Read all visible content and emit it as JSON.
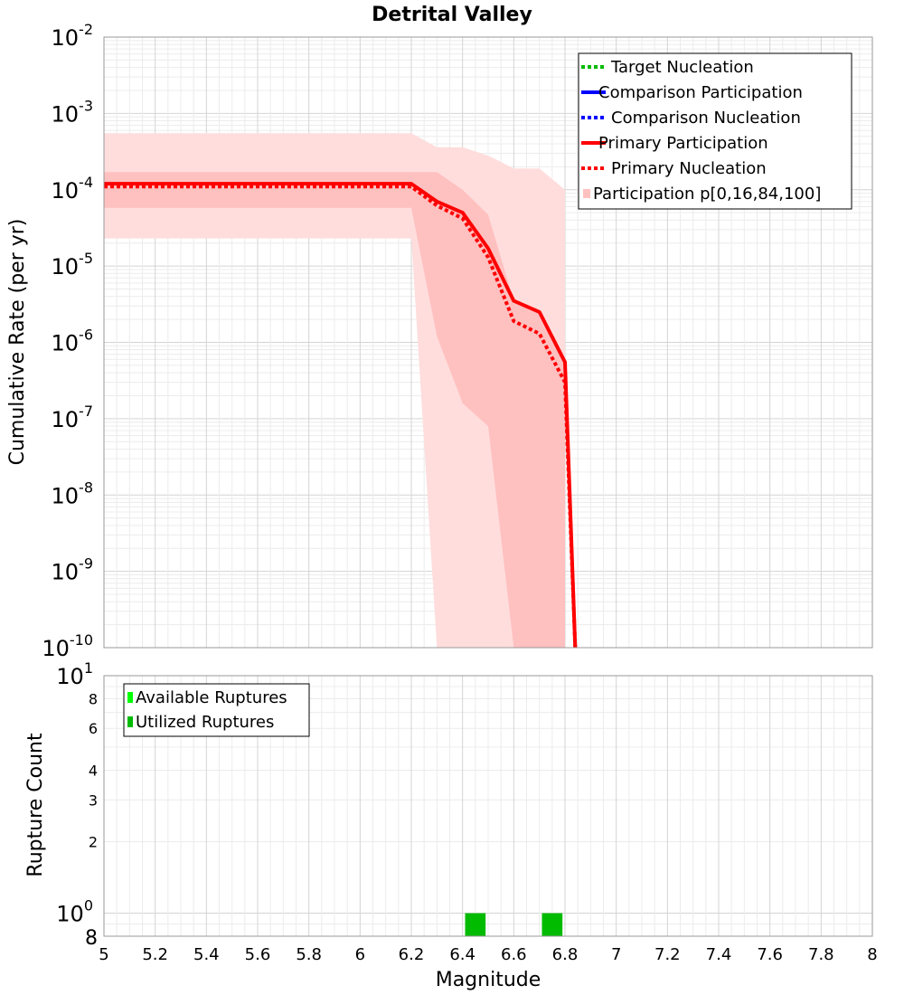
{
  "chart_data": [
    {
      "id": "top",
      "type": "line",
      "title": "Detrital Valley",
      "xlabel": "",
      "ylabel": "Cumulative Rate (per yr)",
      "xlim": [
        5,
        8
      ],
      "ylim": [
        1e-10,
        0.01
      ],
      "yscale": "log",
      "grid": true,
      "legend_position": "top-right",
      "x_ticks": [
        5,
        5.2,
        5.4,
        5.6,
        5.8,
        6,
        6.2,
        6.4,
        6.6,
        6.8,
        7,
        7.2,
        7.4,
        7.6,
        7.8,
        8
      ],
      "y_tick_exponents": [
        -10,
        -9,
        -8,
        -7,
        -6,
        -5,
        -4,
        -3,
        -2
      ],
      "y_tick_base": "10",
      "legend": [
        {
          "label": "Target Nucleation",
          "color": "#00bb00",
          "style": "dotted"
        },
        {
          "label": "Comparison Participation",
          "color": "#0000ff",
          "style": "solid"
        },
        {
          "label": "Comparison Nucleation",
          "color": "#0000ff",
          "style": "dotted"
        },
        {
          "label": "Primary Participation",
          "color": "#ff0000",
          "style": "solid"
        },
        {
          "label": "Primary Nucleation",
          "color": "#ff0000",
          "style": "dotted"
        },
        {
          "label": "Participation p[0,16,84,100]",
          "color": "#ffc0c0",
          "style": "band"
        }
      ],
      "series": [
        {
          "name": "Primary Participation",
          "color": "#ff0000",
          "style": "solid",
          "x": [
            5.0,
            6.2,
            6.3,
            6.4,
            6.5,
            6.6,
            6.7,
            6.8,
            6.84
          ],
          "y": [
            0.00012,
            0.00012,
            7e-05,
            5e-05,
            1.7e-05,
            3.5e-06,
            2.5e-06,
            5.5e-07,
            1e-10
          ]
        },
        {
          "name": "Primary Nucleation",
          "color": "#ff0000",
          "style": "dotted",
          "x": [
            5.0,
            6.2,
            6.3,
            6.4,
            6.5,
            6.6,
            6.7,
            6.8,
            6.84
          ],
          "y": [
            0.00011,
            0.00011,
            6.2e-05,
            4.2e-05,
            1.3e-05,
            1.9e-06,
            1.3e-06,
            3e-07,
            1e-10
          ]
        }
      ],
      "bands": [
        {
          "kind": "p0-p100",
          "color": "#ffdddd",
          "x": [
            5.0,
            6.2,
            6.3,
            6.4,
            6.5,
            6.6,
            6.7,
            6.8
          ],
          "upper": [
            0.00055,
            0.00055,
            0.00036,
            0.00036,
            0.00028,
            0.00019,
            0.00019,
            0.0001
          ],
          "lower": [
            2.3e-05,
            2.3e-05,
            1e-10,
            1e-10,
            1e-10,
            1e-10,
            1e-10,
            1e-10
          ],
          "lower_edge_x": [
            5.0,
            6.2,
            6.25
          ]
        },
        {
          "kind": "p16-p84",
          "color": "#ffc0c0",
          "x": [
            5.0,
            6.2,
            6.3,
            6.4,
            6.5,
            6.6,
            6.7,
            6.8
          ],
          "upper": [
            0.00017,
            0.00017,
            0.00017,
            0.0001,
            4.7e-05,
            3.5e-06,
            2.5e-06,
            5.5e-07
          ],
          "lower": [
            5.8e-05,
            5.8e-05,
            1.2e-06,
            1.6e-07,
            8e-08,
            1e-10,
            1e-10,
            1e-10
          ]
        }
      ]
    },
    {
      "id": "bottom",
      "type": "bar",
      "title": "",
      "xlabel": "Magnitude",
      "ylabel": "Rupture Count",
      "xlim": [
        5,
        8
      ],
      "ylim": [
        0.8,
        10
      ],
      "yscale": "log",
      "grid": true,
      "legend_position": "top-left",
      "x_ticks": [
        5,
        5.2,
        5.4,
        5.6,
        5.8,
        6,
        6.2,
        6.4,
        6.6,
        6.8,
        7,
        7.2,
        7.4,
        7.6,
        7.8,
        8
      ],
      "y_minor_ticks": [
        {
          "value": 8,
          "label": "8"
        },
        {
          "value": 6,
          "label": "6"
        },
        {
          "value": 4,
          "label": "4"
        },
        {
          "value": 3,
          "label": "3"
        },
        {
          "value": 2,
          "label": "2"
        }
      ],
      "y_major_ticks": [
        {
          "value": 10,
          "base": "10",
          "exp": "1"
        },
        {
          "value": 1,
          "base": "10",
          "exp": "0"
        }
      ],
      "y_bottom_label": "8",
      "legend": [
        {
          "label": "Available Ruptures",
          "color": "#00ff00"
        },
        {
          "label": "Utilized Ruptures",
          "color": "#00bb00"
        }
      ],
      "series": [
        {
          "name": "Utilized Ruptures",
          "color": "#00bb00",
          "bins": [
            {
              "x0": 6.41,
              "x1": 6.49,
              "value": 1
            },
            {
              "x0": 6.71,
              "x1": 6.79,
              "value": 1
            }
          ]
        }
      ]
    }
  ]
}
